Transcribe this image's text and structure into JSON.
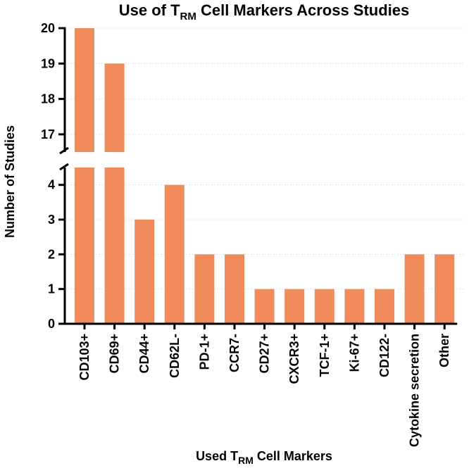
{
  "chart_data": {
    "type": "bar",
    "title": {
      "prefix": "Use of T",
      "sub": "RM",
      "suffix": " Cell Markers Across Studies"
    },
    "xlabel": {
      "prefix": "Used T",
      "sub": "RM",
      "suffix": " Cell Markers"
    },
    "ylabel": "Number of Studies",
    "categories": [
      "CD103+",
      "CD69+",
      "CD44+",
      "CD62L-",
      "PD-1+",
      "CCR7-",
      "CD27+",
      "CXCR3+",
      "TCF-1+",
      "Ki-67+",
      "CD122-",
      "Cytokine secretion",
      "Other"
    ],
    "values": [
      20,
      19,
      3,
      4,
      2,
      2,
      1,
      1,
      1,
      1,
      1,
      2,
      2
    ],
    "axis_break": {
      "lower_range": [
        0,
        4.5
      ],
      "upper_range": [
        16.5,
        20
      ]
    },
    "lower_ticks": [
      0,
      1,
      2,
      3,
      4
    ],
    "upper_ticks": [
      17,
      18,
      19,
      20
    ],
    "bar_color": "#f08c5c",
    "grid_color": "#e6e6e6"
  }
}
